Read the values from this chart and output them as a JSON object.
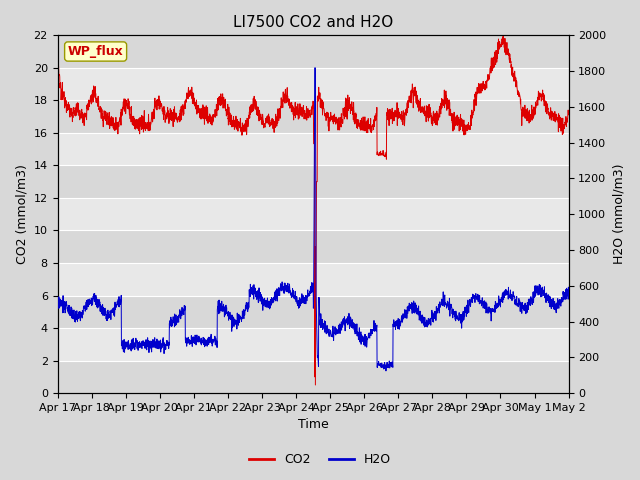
{
  "title": "LI7500 CO2 and H2O",
  "xlabel": "Time",
  "ylabel_left": "CO2 (mmol/m3)",
  "ylabel_right": "H2O (mmol/m3)",
  "ylim_left": [
    0,
    22
  ],
  "ylim_right": [
    0,
    2000
  ],
  "yticks_left": [
    0,
    2,
    4,
    6,
    8,
    10,
    12,
    14,
    16,
    18,
    20,
    22
  ],
  "yticks_right": [
    0,
    200,
    400,
    600,
    800,
    1000,
    1200,
    1400,
    1600,
    1800,
    2000
  ],
  "xtick_labels": [
    "Apr 17",
    "Apr 18",
    "Apr 19",
    "Apr 20",
    "Apr 21",
    "Apr 22",
    "Apr 23",
    "Apr 24",
    "Apr 25",
    "Apr 26",
    "Apr 27",
    "Apr 28",
    "Apr 29",
    "Apr 30",
    "May 1",
    "May 2"
  ],
  "co2_color": "#dd0000",
  "h2o_color": "#0000cc",
  "fig_facecolor": "#d8d8d8",
  "axes_facecolor": "#e8e8e8",
  "annotation_text": "WP_flux",
  "annotation_facecolor": "#ffffcc",
  "annotation_edgecolor": "#999900",
  "title_fontsize": 11,
  "label_fontsize": 9,
  "tick_fontsize": 8,
  "legend_fontsize": 9
}
